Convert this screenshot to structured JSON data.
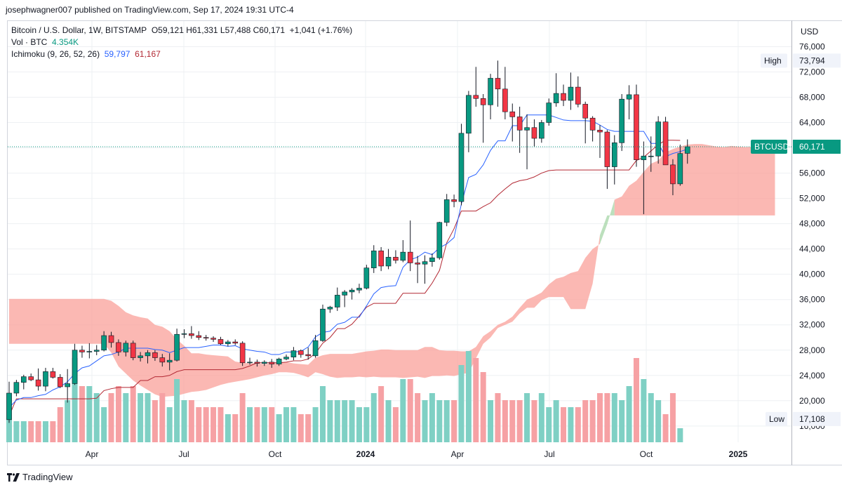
{
  "publisher": "josephwagner007 published on TradingView.com, Sep 17, 2024 19:31 UTC-4",
  "legend": {
    "symbol_line": "Bitcoin / U.S. Dollar, 1W, BITSTAMP",
    "ohlc": "O59,121  H61,331  L57,488  C60,171",
    "change": "+1,041 (+1.76%)",
    "volume_label": "Vol · BTC",
    "volume_value": "4.354K",
    "ichimoku_label": "Ichimoku (9, 26, 52, 26)",
    "ichimoku_conversion": "59,797",
    "ichimoku_base": "61,167"
  },
  "footer": {
    "brand": "TradingView"
  },
  "colors": {
    "up": "#089981",
    "down": "#f23645",
    "vol_up": "#7fd0c4",
    "vol_down": "#f6a1a4",
    "cloud_bull": "#a5d6a7",
    "cloud_bear": "#f9a09a",
    "conversion": "#2962ff",
    "base": "#b22833"
  },
  "chart_data": {
    "type": "candlestick",
    "currency_label": "USD",
    "y_axis": {
      "ticks": [
        "76,000",
        "72,000",
        "68,000",
        "64,000",
        "60,000",
        "56,000",
        "52,000",
        "48,000",
        "44,000",
        "40,000",
        "36,000",
        "32,000",
        "28,000",
        "24,000",
        "20,000",
        "16,000"
      ]
    },
    "x_axis": {
      "ticks": [
        "Apr",
        "Jul",
        "Oct",
        "2024",
        "Apr",
        "Jul",
        "Oct",
        "2025"
      ]
    },
    "badges": {
      "high_label": "High",
      "high_value": "73,794",
      "low_label": "Low",
      "low_value": "17,108",
      "last_label": "BTCUSD",
      "last_value": "60,171"
    },
    "candles": [
      {
        "o": 17000,
        "h": 23000,
        "l": 16500,
        "c": 21200
      },
      {
        "o": 21200,
        "h": 23300,
        "l": 20700,
        "c": 22900
      },
      {
        "o": 22900,
        "h": 24100,
        "l": 21800,
        "c": 23800
      },
      {
        "o": 23800,
        "h": 24300,
        "l": 23100,
        "c": 23300
      },
      {
        "o": 23300,
        "h": 25100,
        "l": 21600,
        "c": 22300
      },
      {
        "o": 22300,
        "h": 25200,
        "l": 21500,
        "c": 24600
      },
      {
        "o": 24600,
        "h": 25200,
        "l": 23500,
        "c": 23700
      },
      {
        "o": 23700,
        "h": 24200,
        "l": 22000,
        "c": 22200
      },
      {
        "o": 22200,
        "h": 25000,
        "l": 19700,
        "c": 22700
      },
      {
        "o": 22700,
        "h": 29000,
        "l": 22500,
        "c": 28000
      },
      {
        "o": 28000,
        "h": 28700,
        "l": 26800,
        "c": 27700
      },
      {
        "o": 27700,
        "h": 29100,
        "l": 26700,
        "c": 27800
      },
      {
        "o": 27800,
        "h": 28800,
        "l": 27200,
        "c": 28000
      },
      {
        "o": 28000,
        "h": 31000,
        "l": 27800,
        "c": 30300
      },
      {
        "o": 30300,
        "h": 30900,
        "l": 28400,
        "c": 29200
      },
      {
        "o": 29200,
        "h": 29700,
        "l": 27100,
        "c": 27700
      },
      {
        "o": 27700,
        "h": 29500,
        "l": 27000,
        "c": 29100
      },
      {
        "o": 29100,
        "h": 29500,
        "l": 26400,
        "c": 26800
      },
      {
        "o": 26800,
        "h": 27700,
        "l": 26200,
        "c": 27100
      },
      {
        "o": 27100,
        "h": 28000,
        "l": 25900,
        "c": 27600
      },
      {
        "o": 27600,
        "h": 28000,
        "l": 26300,
        "c": 26800
      },
      {
        "o": 26800,
        "h": 27400,
        "l": 25400,
        "c": 26100
      },
      {
        "o": 26100,
        "h": 27500,
        "l": 24800,
        "c": 26400
      },
      {
        "o": 26400,
        "h": 31400,
        "l": 26200,
        "c": 30500
      },
      {
        "o": 30500,
        "h": 31300,
        "l": 29900,
        "c": 30600
      },
      {
        "o": 30600,
        "h": 31800,
        "l": 29800,
        "c": 30300
      },
      {
        "o": 30300,
        "h": 31000,
        "l": 29600,
        "c": 30000
      },
      {
        "o": 30000,
        "h": 30400,
        "l": 29500,
        "c": 29900
      },
      {
        "o": 29900,
        "h": 30200,
        "l": 29300,
        "c": 29700
      },
      {
        "o": 29700,
        "h": 30100,
        "l": 28800,
        "c": 29000
      },
      {
        "o": 29000,
        "h": 29600,
        "l": 28600,
        "c": 29300
      },
      {
        "o": 29300,
        "h": 29700,
        "l": 28800,
        "c": 29100
      },
      {
        "o": 29100,
        "h": 29400,
        "l": 25500,
        "c": 26000
      },
      {
        "o": 26000,
        "h": 26800,
        "l": 25700,
        "c": 26100
      },
      {
        "o": 26100,
        "h": 26500,
        "l": 25400,
        "c": 25900
      },
      {
        "o": 25900,
        "h": 26400,
        "l": 25500,
        "c": 26100
      },
      {
        "o": 26100,
        "h": 26600,
        "l": 25200,
        "c": 25800
      },
      {
        "o": 25800,
        "h": 26800,
        "l": 25500,
        "c": 26600
      },
      {
        "o": 26600,
        "h": 27300,
        "l": 26400,
        "c": 26900
      },
      {
        "o": 26900,
        "h": 28500,
        "l": 26400,
        "c": 27900
      },
      {
        "o": 27900,
        "h": 28100,
        "l": 26800,
        "c": 27300
      },
      {
        "o": 27300,
        "h": 28400,
        "l": 26500,
        "c": 27100
      },
      {
        "o": 27100,
        "h": 30400,
        "l": 26800,
        "c": 29500
      },
      {
        "o": 29500,
        "h": 35200,
        "l": 29300,
        "c": 34500
      },
      {
        "o": 34500,
        "h": 35000,
        "l": 33900,
        "c": 34800
      },
      {
        "o": 34800,
        "h": 37900,
        "l": 34200,
        "c": 36700
      },
      {
        "o": 36700,
        "h": 37500,
        "l": 34800,
        "c": 37200
      },
      {
        "o": 37200,
        "h": 37800,
        "l": 36000,
        "c": 37500
      },
      {
        "o": 37500,
        "h": 38500,
        "l": 37000,
        "c": 37800
      },
      {
        "o": 37800,
        "h": 41500,
        "l": 37600,
        "c": 41000
      },
      {
        "o": 41000,
        "h": 44600,
        "l": 40200,
        "c": 43700
      },
      {
        "o": 43700,
        "h": 44300,
        "l": 40500,
        "c": 41300
      },
      {
        "o": 41300,
        "h": 44000,
        "l": 40800,
        "c": 42700
      },
      {
        "o": 42700,
        "h": 43800,
        "l": 41700,
        "c": 42200
      },
      {
        "o": 42200,
        "h": 45400,
        "l": 41900,
        "c": 43500
      },
      {
        "o": 43500,
        "h": 48500,
        "l": 40500,
        "c": 41800
      },
      {
        "o": 41800,
        "h": 42900,
        "l": 38600,
        "c": 41600
      },
      {
        "o": 41600,
        "h": 43000,
        "l": 38500,
        "c": 42000
      },
      {
        "o": 42000,
        "h": 43300,
        "l": 41200,
        "c": 42600
      },
      {
        "o": 42600,
        "h": 48300,
        "l": 42300,
        "c": 48200
      },
      {
        "o": 48200,
        "h": 52700,
        "l": 47600,
        "c": 51800
      },
      {
        "o": 51800,
        "h": 52600,
        "l": 50600,
        "c": 51500
      },
      {
        "o": 51500,
        "h": 63800,
        "l": 50900,
        "c": 62300
      },
      {
        "o": 62300,
        "h": 69000,
        "l": 59300,
        "c": 68300
      },
      {
        "o": 68300,
        "h": 72800,
        "l": 66500,
        "c": 67800
      },
      {
        "o": 67800,
        "h": 68500,
        "l": 60800,
        "c": 66800
      },
      {
        "o": 66800,
        "h": 71700,
        "l": 64500,
        "c": 71000
      },
      {
        "o": 71000,
        "h": 73794,
        "l": 66500,
        "c": 69300
      },
      {
        "o": 69300,
        "h": 72800,
        "l": 64500,
        "c": 65700
      },
      {
        "o": 65700,
        "h": 67000,
        "l": 61000,
        "c": 64900
      },
      {
        "o": 64900,
        "h": 66500,
        "l": 59200,
        "c": 62800
      },
      {
        "o": 62800,
        "h": 65300,
        "l": 56600,
        "c": 63200
      },
      {
        "o": 63200,
        "h": 64500,
        "l": 60200,
        "c": 61500
      },
      {
        "o": 61500,
        "h": 64400,
        "l": 60800,
        "c": 64000
      },
      {
        "o": 64000,
        "h": 67800,
        "l": 63500,
        "c": 67100
      },
      {
        "o": 67100,
        "h": 71800,
        "l": 66500,
        "c": 68600
      },
      {
        "o": 68600,
        "h": 70000,
        "l": 66600,
        "c": 67500
      },
      {
        "o": 67500,
        "h": 71900,
        "l": 66000,
        "c": 69600
      },
      {
        "o": 69600,
        "h": 71300,
        "l": 66400,
        "c": 66900
      },
      {
        "o": 66900,
        "h": 67300,
        "l": 60700,
        "c": 64700
      },
      {
        "o": 64700,
        "h": 65000,
        "l": 61000,
        "c": 62800
      },
      {
        "o": 62800,
        "h": 63600,
        "l": 58400,
        "c": 62500
      },
      {
        "o": 62500,
        "h": 62800,
        "l": 53500,
        "c": 57000
      },
      {
        "o": 57000,
        "h": 62000,
        "l": 54200,
        "c": 60800
      },
      {
        "o": 60800,
        "h": 68500,
        "l": 59500,
        "c": 67700
      },
      {
        "o": 67700,
        "h": 69900,
        "l": 64500,
        "c": 68400
      },
      {
        "o": 68400,
        "h": 70000,
        "l": 57000,
        "c": 58100
      },
      {
        "o": 58100,
        "h": 61000,
        "l": 49500,
        "c": 58700
      },
      {
        "o": 58700,
        "h": 61800,
        "l": 56200,
        "c": 58700
      },
      {
        "o": 58700,
        "h": 65000,
        "l": 57500,
        "c": 64100
      },
      {
        "o": 64100,
        "h": 64900,
        "l": 57700,
        "c": 57300
      },
      {
        "o": 57300,
        "h": 58200,
        "l": 52500,
        "c": 54300
      },
      {
        "o": 54300,
        "h": 60500,
        "l": 54000,
        "c": 59100
      },
      {
        "o": 59121,
        "h": 61331,
        "l": 57488,
        "c": 60171
      }
    ],
    "volume": [
      7,
      3,
      3,
      3,
      3,
      3,
      3,
      5,
      6,
      12,
      8,
      8,
      7,
      5,
      7,
      8,
      7,
      8,
      7,
      7,
      6,
      7,
      5,
      9,
      6,
      6,
      5,
      5,
      5,
      5,
      4,
      4,
      7,
      5,
      5,
      5,
      5,
      4,
      5,
      5,
      4,
      4,
      5,
      8,
      6,
      6,
      6,
      6,
      5,
      5,
      7,
      8,
      6,
      5,
      9,
      9,
      7,
      6,
      7,
      6,
      6,
      6,
      11,
      13,
      12,
      10,
      6,
      7,
      6,
      6,
      6,
      7,
      6,
      7,
      5,
      6,
      5,
      5,
      5,
      6,
      6,
      7,
      7,
      7,
      6,
      8,
      12,
      9,
      7,
      6,
      4,
      7,
      2
    ],
    "conversion_line": [
      18900,
      20100,
      20500,
      20500,
      20800,
      21000,
      21700,
      22200,
      23000,
      24300,
      25200,
      25500,
      26300,
      27100,
      27300,
      27700,
      28300,
      28300,
      28300,
      28300,
      28100,
      28000,
      27600,
      28000,
      28400,
      28400,
      28400,
      28600,
      28800,
      28800,
      28600,
      28700,
      28200,
      28000,
      27800,
      27700,
      27300,
      27300,
      27700,
      27700,
      27800,
      28500,
      30100,
      30800,
      31000,
      32100,
      32400,
      33200,
      33200,
      35000,
      36900,
      37900,
      38100,
      38200,
      41100,
      42300,
      42700,
      43500,
      43100,
      44200,
      44800,
      45800,
      51100,
      55300,
      55800,
      57300,
      59600,
      61100,
      61100,
      63500,
      63500,
      65200,
      65200,
      65200,
      65200,
      64800,
      64400,
      64300,
      64300,
      64300,
      64200,
      63600,
      62900,
      62600,
      62600,
      62600,
      62600,
      62600,
      60700,
      60700,
      58600,
      59100,
      59400,
      59797
    ],
    "base_line": [
      17600,
      20300,
      20300,
      20300,
      20300,
      20300,
      20300,
      20300,
      20300,
      20300,
      20300,
      20300,
      20400,
      21600,
      21900,
      22100,
      22100,
      22100,
      23200,
      23200,
      23800,
      23800,
      24000,
      24600,
      24900,
      24900,
      24900,
      24900,
      24900,
      24900,
      24900,
      24900,
      25100,
      25500,
      26000,
      26000,
      26000,
      26000,
      26100,
      26300,
      26300,
      26600,
      27500,
      29100,
      30000,
      31400,
      31400,
      32100,
      33400,
      34800,
      35400,
      35400,
      35400,
      35400,
      37000,
      37000,
      37000,
      37000,
      38600,
      40600,
      45000,
      47200,
      50000,
      50000,
      50000,
      50700,
      51300,
      52500,
      53500,
      54400,
      54800,
      55000,
      55400,
      56000,
      56400,
      56500,
      56500,
      56500,
      56500,
      56500,
      56500,
      56500,
      56500,
      56500,
      56500,
      56500,
      58000,
      58500,
      59500,
      60500,
      61200,
      61200,
      61167
    ],
    "cloud_span_a": [
      36100,
      36100,
      36100,
      36100,
      36100,
      36100,
      36100,
      36100,
      36100,
      36100,
      36100,
      36100,
      36100,
      36100,
      35800,
      35000,
      34000,
      33500,
      33200,
      33000,
      32000,
      31700,
      31000,
      29700,
      28700,
      27500,
      27500,
      27300,
      27200,
      27100,
      27000,
      26200,
      26000,
      25900,
      25900,
      25800,
      25900,
      26000,
      26100,
      25900,
      25800,
      25700,
      26800,
      27200,
      27400,
      27400,
      27400,
      27400,
      27600,
      27800,
      27900,
      28100,
      28100,
      28000,
      28000,
      28000,
      28000,
      28500,
      28500,
      28000,
      27900,
      27900,
      27800,
      27800,
      28500,
      30200,
      31000,
      32000,
      32500,
      33300,
      34700,
      36000,
      36500,
      37100,
      38400,
      39300,
      39600,
      40200,
      40500,
      42600,
      44000,
      44800,
      47900,
      51800,
      52300,
      54000,
      54800,
      56200,
      57500,
      58000,
      59300,
      59800,
      60200,
      60500,
      60600,
      60600,
      60400,
      60200,
      60100,
      60300,
      60200,
      60100,
      60200,
      60300,
      60600,
      61100
    ],
    "cloud_span_b": [
      29000,
      29000,
      29000,
      29000,
      29000,
      29000,
      29000,
      29000,
      29000,
      29000,
      29000,
      29000,
      29000,
      29000,
      27600,
      25400,
      24300,
      23200,
      22400,
      21700,
      21000,
      20600,
      20700,
      20800,
      21100,
      21400,
      21500,
      21700,
      22100,
      22500,
      22800,
      23000,
      23200,
      23400,
      23700,
      24000,
      24200,
      24500,
      24500,
      24400,
      24100,
      23700,
      24500,
      24200,
      23800,
      23600,
      23700,
      23700,
      23800,
      23700,
      23800,
      23700,
      23700,
      23700,
      23600,
      23700,
      23800,
      23600,
      23900,
      23900,
      24000,
      23900,
      24200,
      24400,
      26700,
      29000,
      30000,
      31500,
      32000,
      32500,
      33800,
      34700,
      34700,
      35900,
      36400,
      36400,
      36400,
      34500,
      34500,
      34500,
      38500,
      46200,
      49300,
      49300,
      49300,
      49300,
      49300,
      49300,
      49300,
      49300,
      49300,
      49300,
      49300,
      49300,
      49300,
      49300,
      49300,
      49300,
      49300,
      49300,
      49300,
      49300,
      49300,
      49300,
      49300,
      49300
    ]
  }
}
